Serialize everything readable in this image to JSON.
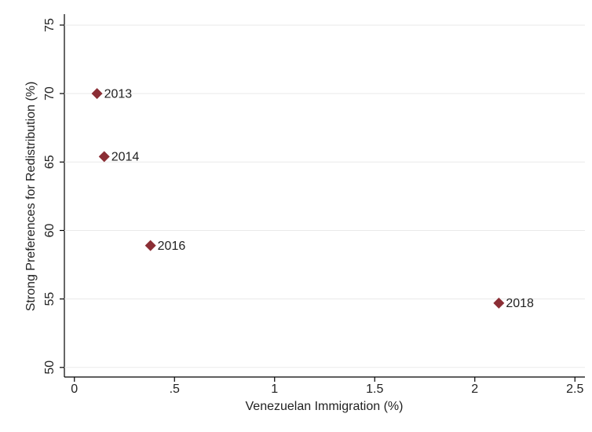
{
  "chart_data": {
    "type": "scatter",
    "x_label": "Venezuelan Immigration (%)",
    "y_label": "Strong Preferences for Redistribution (%)",
    "x": [
      0.113,
      0.149,
      0.38,
      2.12
    ],
    "values": [
      70.0,
      65.4,
      58.9,
      54.7
    ],
    "labels": [
      "2013",
      "2014",
      "2016",
      "2018"
    ],
    "color": "#8b2e35",
    "xlim": [
      -0.05,
      2.55
    ],
    "ylim": [
      49.3,
      75.8
    ],
    "xticks": [
      0,
      {
        "value": 0.5,
        "label": ".5"
      },
      1,
      1.5,
      2,
      2.5
    ],
    "yticks": [
      50,
      55,
      60,
      65,
      70,
      75
    ],
    "grid": true
  }
}
